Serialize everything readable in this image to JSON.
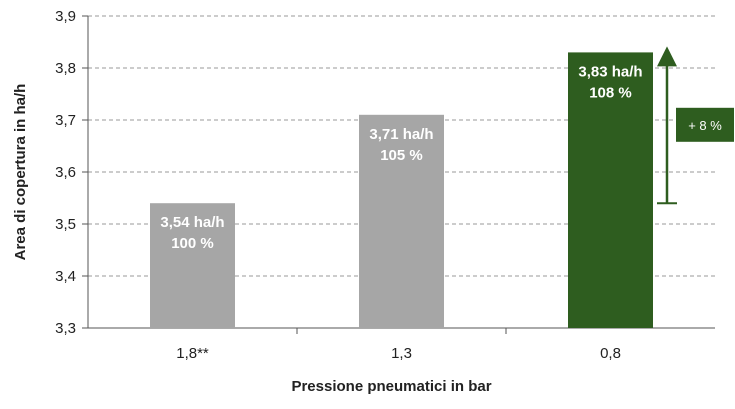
{
  "chart_data": {
    "type": "bar",
    "xlabel": "Pressione pneumatici in bar",
    "ylabel": "Area di copertura in ha/h",
    "ylim": [
      3.3,
      3.9
    ],
    "yticks": [
      "3,3",
      "3,4",
      "3,5",
      "3,6",
      "3,7",
      "3,8",
      "3,9"
    ],
    "grid": "horizontal dashed",
    "categories": [
      "1,8**",
      "1,3",
      "0,8"
    ],
    "values": [
      3.54,
      3.71,
      3.83
    ],
    "value_labels": [
      "3,54 ha/h",
      "3,71 ha/h",
      "3,83 ha/h"
    ],
    "percent_labels": [
      "100 %",
      "105 %",
      "108 %"
    ],
    "bar_colors": [
      "#a6a6a6",
      "#a6a6a6",
      "#2e5d1f"
    ],
    "annotation": {
      "label": "+ 8 %",
      "from_value": 3.54,
      "to_value": 3.83,
      "color": "#2e5d1f"
    }
  }
}
